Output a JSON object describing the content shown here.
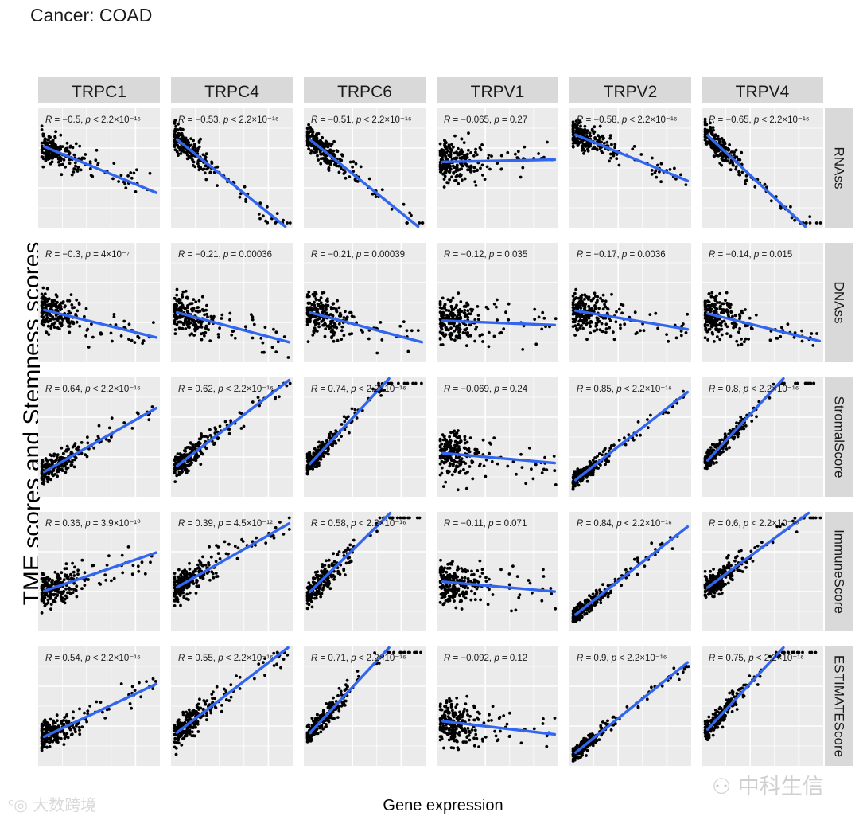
{
  "chart_data": {
    "type": "scatter",
    "title": "Cancer: COAD",
    "xlabel": "Gene expression",
    "ylabel": "TME scores and Stemness scores",
    "columns": [
      "TRPC1",
      "TRPC4",
      "TRPC6",
      "TRPV1",
      "TRPV2",
      "TRPV4"
    ],
    "rows": [
      "RNAss",
      "DNAss",
      "StromalScore",
      "ImmuneScore",
      "ESTIMATEScore"
    ],
    "grid": true,
    "fit_line": "linear regression (blue)",
    "panels": [
      [
        {
          "r": "−0.5",
          "p": "< 2.2×10⁻¹⁶",
          "slope": -0.42,
          "intercept": 0.7
        },
        {
          "r": "−0.53",
          "p": "< 2.2×10⁻¹⁶",
          "slope": -0.82,
          "intercept": 0.78
        },
        {
          "r": "−0.51",
          "p": "< 2.2×10⁻¹⁶",
          "slope": -0.82,
          "intercept": 0.78
        },
        {
          "r": "−0.065",
          "p": "= 0.27",
          "slope": 0.02,
          "intercept": 0.55
        },
        {
          "r": "−0.58",
          "p": "< 2.2×10⁻¹⁶",
          "slope": -0.42,
          "intercept": 0.8
        },
        {
          "r": "−0.65",
          "p": "< 2.2×10⁻¹⁶",
          "slope": -0.95,
          "intercept": 0.82
        }
      ],
      [
        {
          "r": "−0.3",
          "p": "= 4×10⁻⁷",
          "slope": -0.25,
          "intercept": 0.45
        },
        {
          "r": "−0.21",
          "p": "= 0.00036",
          "slope": -0.27,
          "intercept": 0.43
        },
        {
          "r": "−0.21",
          "p": "= 0.00039",
          "slope": -0.27,
          "intercept": 0.43
        },
        {
          "r": "−0.12",
          "p": "= 0.035",
          "slope": -0.04,
          "intercept": 0.35
        },
        {
          "r": "−0.17",
          "p": "= 0.0036",
          "slope": -0.17,
          "intercept": 0.44
        },
        {
          "r": "−0.14",
          "p": "= 0.015",
          "slope": -0.25,
          "intercept": 0.42
        }
      ],
      [
        {
          "r": "0.64",
          "p": "< 2.2×10⁻¹⁶",
          "slope": 0.58,
          "intercept": 0.18
        },
        {
          "r": "0.62",
          "p": "< 2.2×10⁻¹⁶",
          "slope": 0.78,
          "intercept": 0.22
        },
        {
          "r": "0.74",
          "p": "< 2.2×10⁻¹⁶",
          "slope": 1.1,
          "intercept": 0.22
        },
        {
          "r": "−0.069",
          "p": "= 0.24",
          "slope": -0.09,
          "intercept": 0.37
        },
        {
          "r": "0.85",
          "p": "< 2.2×10⁻¹⁶",
          "slope": 0.8,
          "intercept": 0.1
        },
        {
          "r": "0.8",
          "p": "< 2.2×10⁻¹⁶",
          "slope": 1.1,
          "intercept": 0.25
        }
      ],
      [
        {
          "r": "0.36",
          "p": "= 3.9×10⁻¹⁰",
          "slope": 0.35,
          "intercept": 0.32
        },
        {
          "r": "0.39",
          "p": "= 4.5×10⁻¹²",
          "slope": 0.58,
          "intercept": 0.34
        },
        {
          "r": "0.58",
          "p": "< 2.2×10⁻¹⁶",
          "slope": 1.0,
          "intercept": 0.28
        },
        {
          "r": "−0.11",
          "p": "= 0.071",
          "slope": -0.09,
          "intercept": 0.42
        },
        {
          "r": "0.84",
          "p": "< 2.2×10⁻¹⁶",
          "slope": 0.8,
          "intercept": 0.1
        },
        {
          "r": "0.6",
          "p": "< 2.2×10⁻¹⁶",
          "slope": 0.75,
          "intercept": 0.33
        }
      ],
      [
        {
          "r": "0.54",
          "p": "< 2.2×10⁻¹⁶",
          "slope": 0.48,
          "intercept": 0.22
        },
        {
          "r": "0.55",
          "p": "< 2.2×10⁻¹⁶",
          "slope": 0.78,
          "intercept": 0.24
        },
        {
          "r": "0.71",
          "p": "< 2.2×10⁻¹⁶",
          "slope": 1.1,
          "intercept": 0.22
        },
        {
          "r": "−0.092",
          "p": "= 0.12",
          "slope": -0.12,
          "intercept": 0.38
        },
        {
          "r": "0.9",
          "p": "< 2.2×10⁻¹⁶",
          "slope": 0.82,
          "intercept": 0.07
        },
        {
          "r": "0.75",
          "p": "< 2.2×10⁻¹⁶",
          "slope": 1.1,
          "intercept": 0.25
        }
      ]
    ]
  },
  "watermarks": {
    "left_text": "大数跨境",
    "right_text": "中科生信"
  },
  "colors": {
    "panel_bg": "#ebebeb",
    "strip_bg": "#d9d9d9",
    "grid": "#ffffff",
    "point": "#000000",
    "fit_line": "#3366ee"
  }
}
